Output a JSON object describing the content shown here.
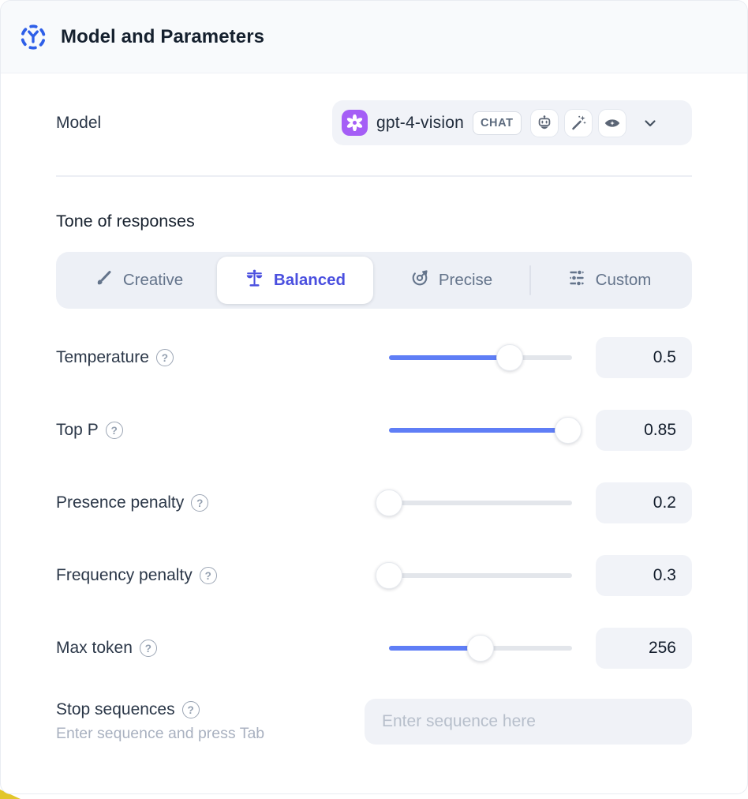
{
  "header": {
    "title": "Model and Parameters"
  },
  "model": {
    "label": "Model",
    "selected": "gpt-4-vision",
    "badge": "CHAT",
    "capability_icons": [
      "robot-icon",
      "magic-wand-icon",
      "vision-icon"
    ]
  },
  "tone": {
    "heading": "Tone of responses",
    "options": [
      {
        "label": "Creative",
        "icon": "brush-icon",
        "selected": false
      },
      {
        "label": "Balanced",
        "icon": "scale-icon",
        "selected": true
      },
      {
        "label": "Precise",
        "icon": "target-icon",
        "selected": false
      },
      {
        "label": "Custom",
        "icon": "sliders-icon",
        "selected": false
      }
    ]
  },
  "parameters": [
    {
      "label": "Temperature",
      "value": "0.5",
      "fill_pct": 66
    },
    {
      "label": "Top P",
      "value": "0.85",
      "fill_pct": 98
    },
    {
      "label": "Presence penalty",
      "value": "0.2",
      "fill_pct": 0
    },
    {
      "label": "Frequency penalty",
      "value": "0.3",
      "fill_pct": 0
    },
    {
      "label": "Max token",
      "value": "256",
      "fill_pct": 50
    }
  ],
  "stop_sequences": {
    "label": "Stop sequences",
    "hint": "Enter sequence and press Tab",
    "placeholder": "Enter sequence here"
  },
  "colors": {
    "accent_blue": "#5f7ef6",
    "selected_indigo": "#4a4fdf",
    "header_icon_blue": "#2e5fe8",
    "logo_purple": "#a55ef6",
    "header_bg": "#f8fafc",
    "field_bg": "#f1f3f8",
    "corner_yellow": "#e2c62a"
  }
}
